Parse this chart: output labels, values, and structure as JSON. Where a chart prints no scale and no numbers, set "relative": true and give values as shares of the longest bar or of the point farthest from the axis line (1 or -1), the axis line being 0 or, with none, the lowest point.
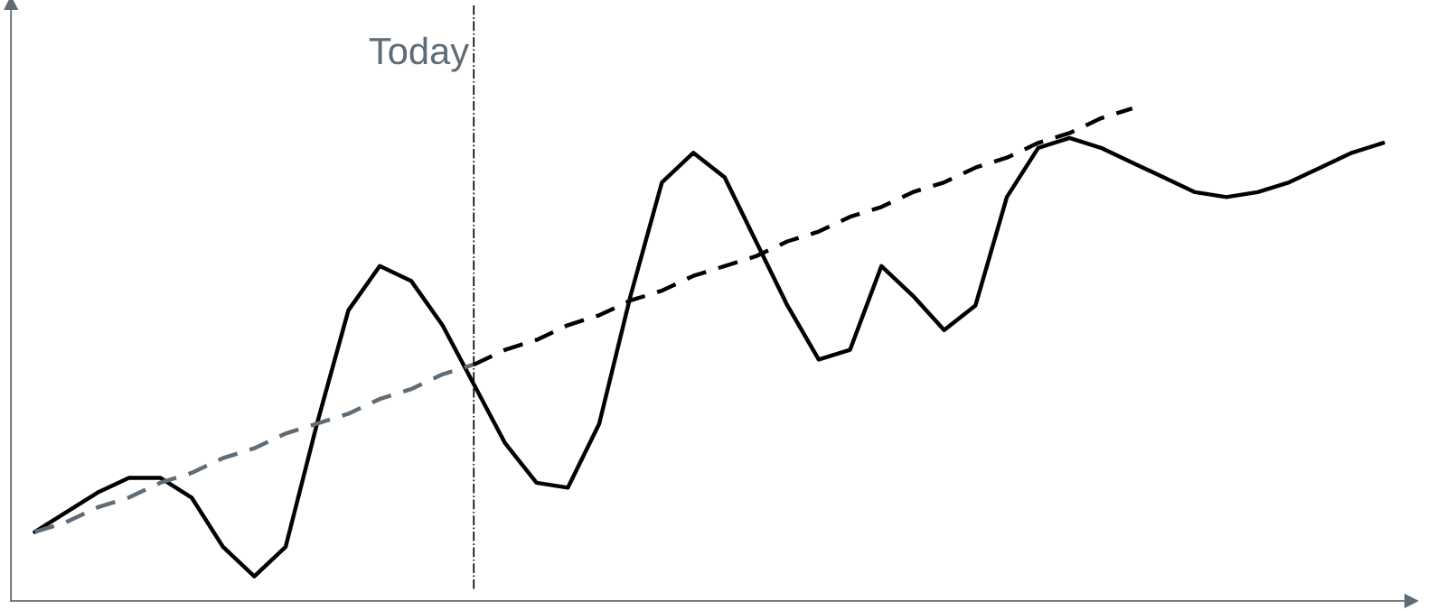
{
  "chart_data": {
    "type": "line",
    "relative": true,
    "grid": false,
    "legend": false,
    "marker": "none",
    "categories": [
      null,
      null,
      null,
      null,
      null,
      null,
      null,
      null,
      null,
      null,
      null,
      null,
      null,
      null,
      null,
      null,
      null,
      null,
      null,
      null,
      null,
      null,
      null,
      null,
      null,
      null,
      null,
      null,
      null,
      null,
      null,
      null,
      null,
      null,
      null,
      null,
      null,
      null,
      null,
      null,
      null,
      null,
      null,
      null
    ],
    "series": [
      {
        "color": "#000000",
        "line_style": "solid",
        "values": [
          0.14,
          0.18,
          0.22,
          0.25,
          0.25,
          0.21,
          0.11,
          0.05,
          0.11,
          0.36,
          0.59,
          0.68,
          0.65,
          0.56,
          0.44,
          0.32,
          0.24,
          0.23,
          0.36,
          0.62,
          0.85,
          0.91,
          0.86,
          0.73,
          0.6,
          0.49,
          0.51,
          0.68,
          0.62,
          0.55,
          0.6,
          0.82,
          0.92,
          0.94,
          0.92,
          0.89,
          0.86,
          0.83,
          0.82,
          0.83,
          0.85,
          0.88,
          0.91,
          0.93
        ]
      },
      {
        "type": "line",
        "color": "#5f6b75",
        "line_style": "dashed",
        "values": [
          0.14,
          0.16,
          0.19,
          0.21,
          0.24,
          0.26,
          0.29,
          0.31,
          0.34,
          0.36,
          0.38,
          0.41,
          0.43,
          0.46,
          0.48,
          null,
          null,
          null,
          null,
          null,
          null,
          null,
          null,
          null,
          null,
          null,
          null,
          null,
          null,
          null,
          null,
          null,
          null,
          null,
          null,
          null,
          null,
          null,
          null,
          null,
          null,
          null,
          null,
          null
        ]
      },
      {
        "type": "line",
        "color": "#000000",
        "line_style": "dashed",
        "values": [
          null,
          null,
          null,
          null,
          null,
          null,
          null,
          null,
          null,
          null,
          null,
          null,
          null,
          null,
          0.48,
          0.51,
          0.53,
          0.56,
          0.58,
          0.61,
          0.63,
          0.66,
          0.68,
          0.7,
          0.73,
          0.75,
          0.78,
          0.8,
          0.83,
          0.85,
          0.88,
          0.9,
          0.93,
          0.95,
          0.98,
          1,
          null,
          null,
          null,
          null,
          null,
          null,
          null,
          null
        ]
      }
    ],
    "annotations": [
      "Today"
    ]
  }
}
